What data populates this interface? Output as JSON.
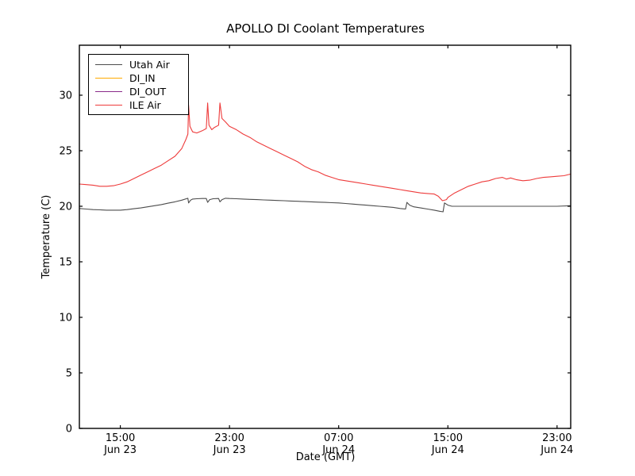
{
  "chart": {
    "title": "APOLLO DI Coolant Temperatures",
    "xlabel": "Date (GMT)",
    "ylabel": "Temperature (C)"
  },
  "colors": {
    "background": "#ffffff",
    "frame": "#000000"
  },
  "chart_data": {
    "type": "line",
    "title": "APOLLO DI Coolant Temperatures",
    "xlabel": "Date (GMT)",
    "ylabel": "Temperature (C)",
    "grid": false,
    "legend_position": "upper left",
    "x_unit": "hours since Jun 23 12:00 GMT",
    "xlim": [
      0,
      36
    ],
    "ylim": [
      0,
      34.5
    ],
    "y_ticks": [
      0,
      5,
      10,
      15,
      20,
      25,
      30
    ],
    "x_ticks": [
      {
        "pos": 3,
        "time": "15:00",
        "date": "Jun 23"
      },
      {
        "pos": 11,
        "time": "23:00",
        "date": "Jun 23"
      },
      {
        "pos": 19,
        "time": "07:00",
        "date": "Jun 24"
      },
      {
        "pos": 27,
        "time": "15:00",
        "date": "Jun 24"
      },
      {
        "pos": 35,
        "time": "23:00",
        "date": "Jun 24"
      }
    ],
    "series": [
      {
        "name": "Utah Air",
        "color": "#4c4c4c",
        "points": [
          [
            0,
            19.8
          ],
          [
            0.5,
            19.75
          ],
          [
            1,
            19.7
          ],
          [
            1.5,
            19.68
          ],
          [
            2,
            19.65
          ],
          [
            2.5,
            19.65
          ],
          [
            3,
            19.65
          ],
          [
            3.5,
            19.7
          ],
          [
            4,
            19.78
          ],
          [
            4.5,
            19.85
          ],
          [
            5,
            19.95
          ],
          [
            5.5,
            20.05
          ],
          [
            6,
            20.15
          ],
          [
            6.5,
            20.28
          ],
          [
            7,
            20.4
          ],
          [
            7.5,
            20.55
          ],
          [
            7.95,
            20.72
          ],
          [
            8.0,
            20.3
          ],
          [
            8.15,
            20.55
          ],
          [
            8.3,
            20.65
          ],
          [
            8.6,
            20.68
          ],
          [
            9,
            20.7
          ],
          [
            9.3,
            20.7
          ],
          [
            9.4,
            20.35
          ],
          [
            9.55,
            20.6
          ],
          [
            9.8,
            20.68
          ],
          [
            10.2,
            20.7
          ],
          [
            10.3,
            20.4
          ],
          [
            10.45,
            20.6
          ],
          [
            10.7,
            20.72
          ],
          [
            11,
            20.7
          ],
          [
            11.5,
            20.68
          ],
          [
            12,
            20.65
          ],
          [
            12.5,
            20.62
          ],
          [
            13,
            20.6
          ],
          [
            13.5,
            20.57
          ],
          [
            14,
            20.55
          ],
          [
            14.5,
            20.52
          ],
          [
            15,
            20.5
          ],
          [
            15.5,
            20.47
          ],
          [
            16,
            20.45
          ],
          [
            16.5,
            20.42
          ],
          [
            17,
            20.4
          ],
          [
            17.5,
            20.37
          ],
          [
            18,
            20.35
          ],
          [
            18.5,
            20.32
          ],
          [
            19,
            20.3
          ],
          [
            19.5,
            20.25
          ],
          [
            20,
            20.2
          ],
          [
            20.5,
            20.15
          ],
          [
            21,
            20.1
          ],
          [
            21.5,
            20.05
          ],
          [
            22,
            20.0
          ],
          [
            22.5,
            19.95
          ],
          [
            23,
            19.9
          ],
          [
            23.5,
            19.8
          ],
          [
            23.9,
            19.75
          ],
          [
            24.0,
            20.35
          ],
          [
            24.2,
            20.1
          ],
          [
            24.5,
            19.95
          ],
          [
            25,
            19.85
          ],
          [
            25.5,
            19.75
          ],
          [
            26,
            19.65
          ],
          [
            26.4,
            19.55
          ],
          [
            26.65,
            19.5
          ],
          [
            26.75,
            20.3
          ],
          [
            27,
            20.1
          ],
          [
            27.3,
            20.0
          ],
          [
            28,
            20.0
          ],
          [
            29,
            20.0
          ],
          [
            30,
            20.0
          ],
          [
            31,
            20.0
          ],
          [
            32,
            20.0
          ],
          [
            33,
            20.0
          ],
          [
            34,
            20.0
          ],
          [
            35,
            20.0
          ],
          [
            36,
            20.05
          ]
        ]
      },
      {
        "name": "DI_IN",
        "color": "#ffaa00",
        "points": [
          [
            0,
            0
          ],
          [
            36,
            0
          ]
        ]
      },
      {
        "name": "DI_OUT",
        "color": "#8a2b8a",
        "points": [
          [
            0,
            0
          ],
          [
            36,
            0
          ]
        ]
      },
      {
        "name": "ILE Air",
        "color": "#ee3b3b",
        "points": [
          [
            0,
            22.0
          ],
          [
            0.5,
            21.95
          ],
          [
            1,
            21.9
          ],
          [
            1.5,
            21.8
          ],
          [
            2,
            21.8
          ],
          [
            2.5,
            21.85
          ],
          [
            3,
            22.0
          ],
          [
            3.5,
            22.2
          ],
          [
            4,
            22.5
          ],
          [
            4.5,
            22.8
          ],
          [
            5,
            23.1
          ],
          [
            5.5,
            23.4
          ],
          [
            6,
            23.7
          ],
          [
            6.5,
            24.1
          ],
          [
            7,
            24.5
          ],
          [
            7.5,
            25.2
          ],
          [
            7.8,
            26.0
          ],
          [
            7.95,
            26.5
          ],
          [
            8.0,
            29.1
          ],
          [
            8.1,
            27.2
          ],
          [
            8.3,
            26.7
          ],
          [
            8.6,
            26.6
          ],
          [
            9.0,
            26.8
          ],
          [
            9.3,
            27.0
          ],
          [
            9.4,
            29.3
          ],
          [
            9.5,
            27.3
          ],
          [
            9.7,
            26.9
          ],
          [
            9.9,
            27.1
          ],
          [
            10.2,
            27.3
          ],
          [
            10.3,
            29.3
          ],
          [
            10.45,
            27.9
          ],
          [
            10.7,
            27.6
          ],
          [
            11,
            27.2
          ],
          [
            11.5,
            26.9
          ],
          [
            12,
            26.5
          ],
          [
            12.5,
            26.2
          ],
          [
            13,
            25.8
          ],
          [
            13.5,
            25.5
          ],
          [
            14,
            25.2
          ],
          [
            14.5,
            24.9
          ],
          [
            15,
            24.6
          ],
          [
            15.5,
            24.3
          ],
          [
            16,
            24.0
          ],
          [
            16.5,
            23.6
          ],
          [
            17,
            23.3
          ],
          [
            17.5,
            23.1
          ],
          [
            18,
            22.8
          ],
          [
            18.5,
            22.6
          ],
          [
            19,
            22.4
          ],
          [
            19.5,
            22.3
          ],
          [
            20,
            22.2
          ],
          [
            20.5,
            22.1
          ],
          [
            21,
            22.0
          ],
          [
            21.5,
            21.9
          ],
          [
            22,
            21.8
          ],
          [
            22.5,
            21.7
          ],
          [
            23,
            21.6
          ],
          [
            23.5,
            21.5
          ],
          [
            24,
            21.4
          ],
          [
            24.5,
            21.3
          ],
          [
            25,
            21.2
          ],
          [
            25.5,
            21.15
          ],
          [
            26,
            21.1
          ],
          [
            26.3,
            20.9
          ],
          [
            26.6,
            20.5
          ],
          [
            26.9,
            20.6
          ],
          [
            27,
            20.8
          ],
          [
            27.5,
            21.2
          ],
          [
            28,
            21.5
          ],
          [
            28.5,
            21.8
          ],
          [
            29,
            22.0
          ],
          [
            29.5,
            22.2
          ],
          [
            30,
            22.3
          ],
          [
            30.5,
            22.5
          ],
          [
            31,
            22.6
          ],
          [
            31.3,
            22.45
          ],
          [
            31.6,
            22.55
          ],
          [
            32,
            22.4
          ],
          [
            32.5,
            22.3
          ],
          [
            33,
            22.35
          ],
          [
            33.5,
            22.5
          ],
          [
            34,
            22.6
          ],
          [
            34.5,
            22.65
          ],
          [
            35,
            22.7
          ],
          [
            35.5,
            22.75
          ],
          [
            36,
            22.9
          ]
        ]
      }
    ]
  }
}
